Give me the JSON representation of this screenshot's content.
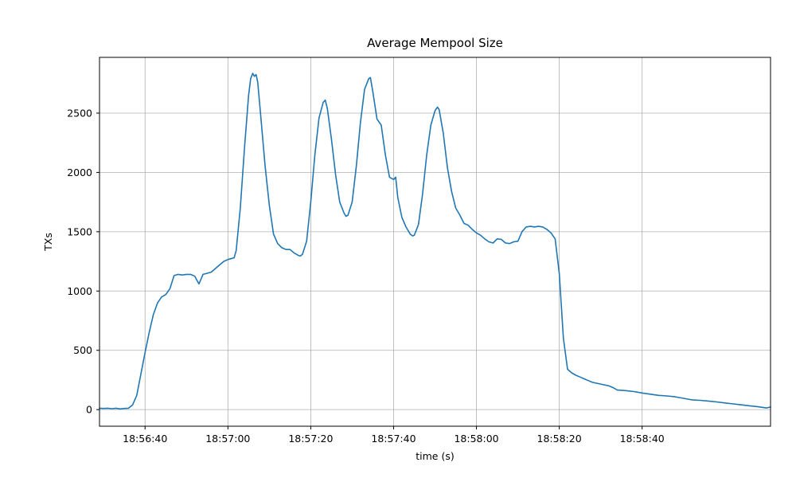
{
  "chart_data": {
    "type": "line",
    "title": "Average Mempool Size",
    "xlabel": "time (s)",
    "ylabel": "TXs",
    "grid": true,
    "grid_color": "#b0b0b0",
    "line_color": "#1f77b4",
    "axis_color": "#000000",
    "x_ticks": [
      "18:56:40",
      "18:57:00",
      "18:57:20",
      "18:57:40",
      "18:58:00",
      "18:58:20",
      "18:58:40"
    ],
    "x_tick_values": [
      40,
      60,
      80,
      100,
      120,
      140,
      160
    ],
    "x_unit": "seconds after 18:56:00",
    "y_ticks": [
      0,
      500,
      1000,
      1500,
      2000,
      2500
    ],
    "xlim": [
      29,
      191
    ],
    "ylim": [
      -140,
      2970
    ],
    "legend_position": "none",
    "points": [
      [
        29,
        12
      ],
      [
        30,
        10
      ],
      [
        31,
        12
      ],
      [
        32,
        8
      ],
      [
        33,
        12
      ],
      [
        34,
        6
      ],
      [
        35,
        10
      ],
      [
        36,
        12
      ],
      [
        37,
        40
      ],
      [
        38,
        120
      ],
      [
        39,
        300
      ],
      [
        40,
        480
      ],
      [
        41,
        650
      ],
      [
        42,
        800
      ],
      [
        43,
        900
      ],
      [
        44,
        950
      ],
      [
        45,
        970
      ],
      [
        46,
        1020
      ],
      [
        47,
        1130
      ],
      [
        48,
        1140
      ],
      [
        49,
        1135
      ],
      [
        50,
        1140
      ],
      [
        51,
        1140
      ],
      [
        52,
        1125
      ],
      [
        53,
        1060
      ],
      [
        54,
        1140
      ],
      [
        55,
        1150
      ],
      [
        56,
        1160
      ],
      [
        57,
        1190
      ],
      [
        58,
        1220
      ],
      [
        59,
        1250
      ],
      [
        60,
        1265
      ],
      [
        61,
        1275
      ],
      [
        61.5,
        1280
      ],
      [
        62,
        1340
      ],
      [
        63,
        1700
      ],
      [
        64,
        2200
      ],
      [
        65,
        2650
      ],
      [
        65.5,
        2790
      ],
      [
        66,
        2835
      ],
      [
        66.4,
        2810
      ],
      [
        66.8,
        2825
      ],
      [
        67.2,
        2760
      ],
      [
        68,
        2450
      ],
      [
        69,
        2050
      ],
      [
        70,
        1720
      ],
      [
        71,
        1480
      ],
      [
        72,
        1400
      ],
      [
        73,
        1365
      ],
      [
        74,
        1350
      ],
      [
        75,
        1350
      ],
      [
        76,
        1320
      ],
      [
        77,
        1300
      ],
      [
        77.5,
        1295
      ],
      [
        78,
        1310
      ],
      [
        79,
        1420
      ],
      [
        80,
        1750
      ],
      [
        81,
        2150
      ],
      [
        82,
        2460
      ],
      [
        83,
        2590
      ],
      [
        83.5,
        2610
      ],
      [
        84,
        2540
      ],
      [
        85,
        2280
      ],
      [
        86,
        1980
      ],
      [
        87,
        1750
      ],
      [
        88,
        1660
      ],
      [
        88.5,
        1630
      ],
      [
        89,
        1640
      ],
      [
        90,
        1750
      ],
      [
        91,
        2050
      ],
      [
        92,
        2420
      ],
      [
        93,
        2700
      ],
      [
        94,
        2790
      ],
      [
        94.4,
        2800
      ],
      [
        95,
        2680
      ],
      [
        96,
        2450
      ],
      [
        97,
        2400
      ],
      [
        98,
        2150
      ],
      [
        99,
        1960
      ],
      [
        100,
        1940
      ],
      [
        100.5,
        1960
      ],
      [
        101,
        1790
      ],
      [
        102,
        1620
      ],
      [
        103,
        1540
      ],
      [
        104,
        1480
      ],
      [
        104.6,
        1465
      ],
      [
        105,
        1470
      ],
      [
        106,
        1560
      ],
      [
        107,
        1820
      ],
      [
        108,
        2150
      ],
      [
        109,
        2400
      ],
      [
        110,
        2520
      ],
      [
        110.6,
        2550
      ],
      [
        111,
        2530
      ],
      [
        112,
        2330
      ],
      [
        113,
        2040
      ],
      [
        114,
        1840
      ],
      [
        115,
        1700
      ],
      [
        116,
        1640
      ],
      [
        117,
        1570
      ],
      [
        118,
        1555
      ],
      [
        119,
        1520
      ],
      [
        120,
        1490
      ],
      [
        121,
        1470
      ],
      [
        122,
        1440
      ],
      [
        123,
        1415
      ],
      [
        124,
        1405
      ],
      [
        125,
        1440
      ],
      [
        126,
        1435
      ],
      [
        127,
        1405
      ],
      [
        128,
        1400
      ],
      [
        129,
        1415
      ],
      [
        130,
        1420
      ],
      [
        131,
        1500
      ],
      [
        132,
        1540
      ],
      [
        133,
        1545
      ],
      [
        134,
        1540
      ],
      [
        135,
        1545
      ],
      [
        136,
        1540
      ],
      [
        137,
        1520
      ],
      [
        138,
        1490
      ],
      [
        139,
        1440
      ],
      [
        140,
        1150
      ],
      [
        141,
        600
      ],
      [
        142,
        340
      ],
      [
        143,
        310
      ],
      [
        144,
        290
      ],
      [
        145,
        275
      ],
      [
        146,
        260
      ],
      [
        147,
        245
      ],
      [
        148,
        230
      ],
      [
        150,
        215
      ],
      [
        152,
        200
      ],
      [
        153,
        185
      ],
      [
        154,
        165
      ],
      [
        156,
        160
      ],
      [
        158,
        152
      ],
      [
        160,
        140
      ],
      [
        162,
        130
      ],
      [
        164,
        120
      ],
      [
        166,
        115
      ],
      [
        168,
        108
      ],
      [
        170,
        95
      ],
      [
        172,
        82
      ],
      [
        174,
        78
      ],
      [
        176,
        72
      ],
      [
        178,
        65
      ],
      [
        180,
        56
      ],
      [
        182,
        48
      ],
      [
        184,
        40
      ],
      [
        186,
        32
      ],
      [
        188,
        24
      ],
      [
        190,
        14
      ],
      [
        191,
        22
      ]
    ]
  }
}
